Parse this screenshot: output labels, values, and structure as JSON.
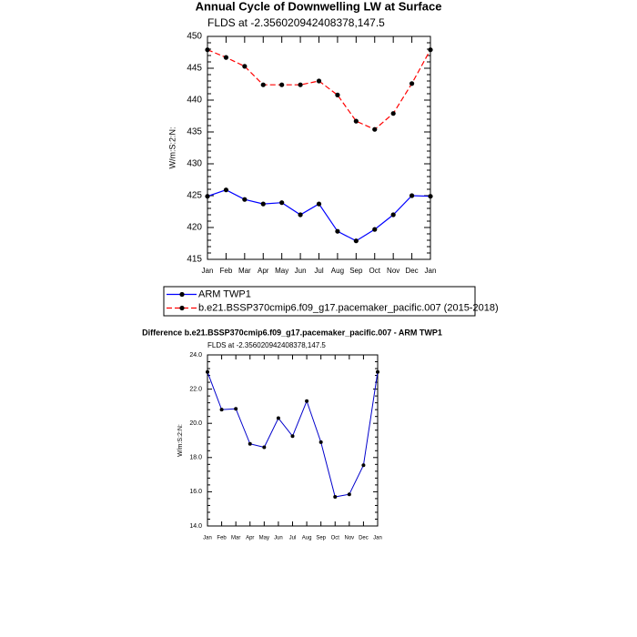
{
  "chart_data": [
    {
      "type": "line",
      "title": "Annual Cycle of Downwelling LW at Surface",
      "subtitle": "FLDS at -2.356020942408378,147.5",
      "y_label": "W/m:S:2:N:",
      "categories": [
        "Jan",
        "Feb",
        "Mar",
        "Apr",
        "May",
        "Jun",
        "Jul",
        "Aug",
        "Sep",
        "Oct",
        "Nov",
        "Dec",
        "Jan"
      ],
      "series": [
        {
          "name": "ARM TWP1",
          "color": "#0000ff",
          "marker_color": "#000000",
          "line_style": "solid",
          "values": [
            424.9,
            425.9,
            424.4,
            423.7,
            423.9,
            422.0,
            423.7,
            419.4,
            417.9,
            419.7,
            422.0,
            425.0,
            424.9
          ]
        },
        {
          "name": "b.e21.BSSP370cmip6.f09_g17.pacemaker_pacific.007 (2015-2018)",
          "color": "#ff0000",
          "marker_color": "#000000",
          "line_style": "dashed",
          "values": [
            447.9,
            446.7,
            445.3,
            442.4,
            442.4,
            442.4,
            443.0,
            440.8,
            436.7,
            435.4,
            437.9,
            442.6,
            447.9
          ]
        }
      ],
      "ylim": [
        415,
        450
      ],
      "yticks": [
        415,
        420,
        425,
        430,
        435,
        440,
        445,
        450
      ],
      "legend": "below"
    },
    {
      "type": "line",
      "title": "Difference b.e21.BSSP370cmip6.f09_g17.pacemaker_pacific.007 - ARM TWP1",
      "subtitle": "FLDS at -2.356020942408378,147.5",
      "y_label": "W/m:S:2:N:",
      "categories": [
        "Jan",
        "Feb",
        "Mar",
        "Apr",
        "May",
        "Jun",
        "Jul",
        "Aug",
        "Sep",
        "Oct",
        "Nov",
        "Dec",
        "Jan"
      ],
      "series": [
        {
          "color": "#0000cc",
          "marker_color": "#000000",
          "line_style": "solid",
          "values": [
            23.0,
            20.8,
            20.85,
            18.8,
            18.6,
            20.3,
            19.25,
            21.3,
            18.9,
            15.7,
            15.85,
            17.55,
            23.0
          ]
        }
      ],
      "ylim": [
        14,
        24
      ],
      "yticks": [
        {
          "value": 14,
          "label": "14.0"
        },
        {
          "value": 16,
          "label": "16.0"
        },
        {
          "value": 18,
          "label": "18.0"
        },
        {
          "value": 20,
          "label": "20.0"
        },
        {
          "value": 22,
          "label": "22.0"
        },
        {
          "value": 24,
          "label": "24.0"
        }
      ]
    }
  ]
}
